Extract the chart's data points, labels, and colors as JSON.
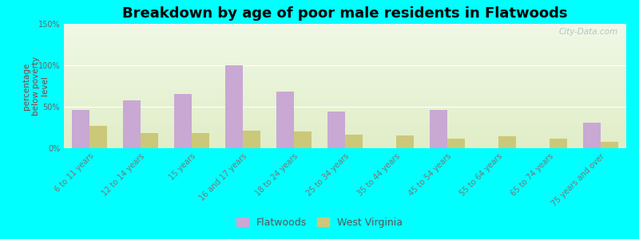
{
  "title": "Breakdown by age of poor male residents in Flatwoods",
  "ylabel": "percentage\nbelow poverty\nlevel",
  "categories": [
    "6 to 11 years",
    "12 to 14 years",
    "15 years",
    "16 and 17 years",
    "18 to 24 years",
    "25 to 34 years",
    "35 to 44 years",
    "45 to 54 years",
    "55 to 64 years",
    "65 to 74 years",
    "75 years and over"
  ],
  "flatwoods": [
    46,
    58,
    65,
    100,
    68,
    44,
    0,
    46,
    0,
    0,
    31
  ],
  "west_virginia": [
    27,
    18,
    18,
    21,
    20,
    16,
    15,
    12,
    14,
    12,
    8
  ],
  "flatwoods_color": "#c9a8d4",
  "west_virginia_color": "#ccc87a",
  "bg_color": "#00ffff",
  "ylim": [
    0,
    150
  ],
  "yticks": [
    0,
    50,
    100,
    150
  ],
  "ytick_labels": [
    "0%",
    "50%",
    "100%",
    "150%"
  ],
  "bar_width": 0.35,
  "title_fontsize": 13,
  "axis_label_fontsize": 7.5,
  "tick_fontsize": 7,
  "legend_fontsize": 9,
  "watermark": "City-Data.com"
}
